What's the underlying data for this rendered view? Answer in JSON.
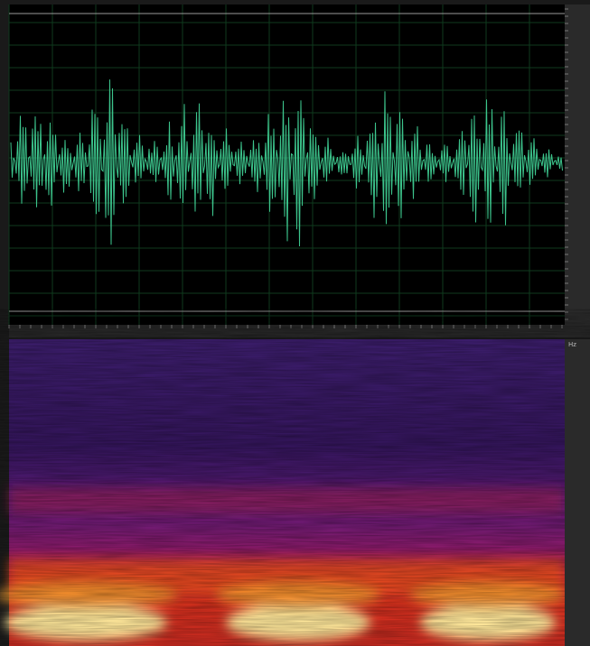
{
  "spectrogram": {
    "unit": "Hz"
  }
}
